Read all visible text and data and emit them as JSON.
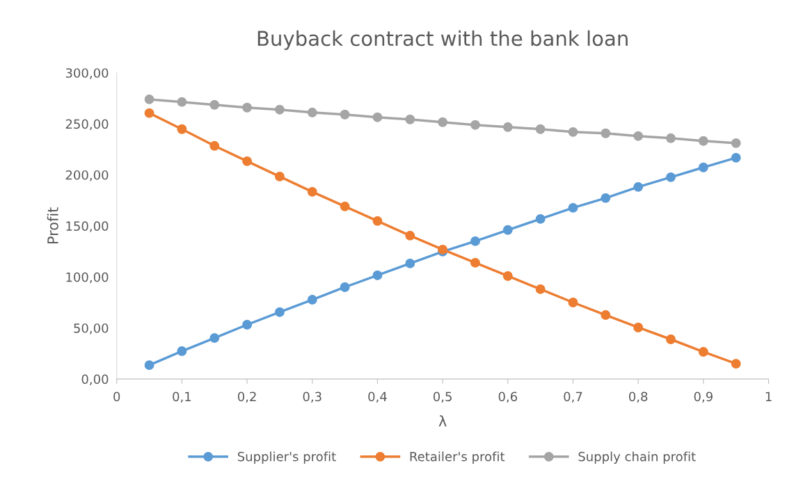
{
  "chart_data": {
    "type": "line",
    "title": "Buyback contract with the bank loan",
    "xlabel": "λ",
    "ylabel": "Profit",
    "x": [
      0.05,
      0.1,
      0.15,
      0.2,
      0.25,
      0.3,
      0.35,
      0.4,
      0.45,
      0.5,
      0.55,
      0.6,
      0.65,
      0.7,
      0.75,
      0.8,
      0.85,
      0.9,
      0.95
    ],
    "series": [
      {
        "name": "Supplier's profit",
        "color": "#5b9bd5",
        "values": [
          13.6,
          27.3,
          40.2,
          53.2,
          65.5,
          77.7,
          90,
          101.6,
          113.2,
          124.8,
          135,
          146,
          156.8,
          167.7,
          177.3,
          188.2,
          197.7,
          207.3,
          216.8
        ]
      },
      {
        "name": "Retailer's profit",
        "color": "#ed7d31",
        "values": [
          260.5,
          244.8,
          228.4,
          213.4,
          198.4,
          183.4,
          169.1,
          154.8,
          140.5,
          126.8,
          113.9,
          100.9,
          88,
          75,
          62.7,
          50.5,
          38.9,
          26.6,
          15
        ]
      },
      {
        "name": "Supply chain profit",
        "color": "#a5a5a5",
        "values": [
          274,
          271.4,
          268.6,
          265.9,
          263.9,
          261.1,
          259.1,
          256.4,
          254.3,
          251.6,
          248.9,
          246.8,
          244.8,
          242,
          240.7,
          238,
          235.9,
          233.2,
          231.1
        ]
      }
    ],
    "xlim": [
      0,
      1
    ],
    "xticks": [
      0,
      {
        "value": 0.1,
        "label": "0,1"
      },
      {
        "value": 0.2,
        "label": "0,2"
      },
      {
        "value": 0.3,
        "label": "0,3"
      },
      {
        "value": 0.4,
        "label": "0,4"
      },
      {
        "value": 0.5,
        "label": "0,5"
      },
      {
        "value": 0.6,
        "label": "0,6"
      },
      {
        "value": 0.7,
        "label": "0,7"
      },
      {
        "value": 0.8,
        "label": "0,8"
      },
      {
        "value": 0.9,
        "label": "0,9"
      },
      1
    ],
    "ylim": [
      0,
      300
    ],
    "yticks": [
      {
        "value": 0,
        "label": "0,00"
      },
      {
        "value": 50,
        "label": "50,00"
      },
      {
        "value": 100,
        "label": "100,00"
      },
      {
        "value": 150,
        "label": "150,00"
      },
      {
        "value": 200,
        "label": "200,00"
      },
      {
        "value": 250,
        "label": "250,00"
      },
      {
        "value": 300,
        "label": "300,00"
      }
    ],
    "marker": "circle",
    "line_style": "solid",
    "legend": "bottom",
    "grid": false
  }
}
